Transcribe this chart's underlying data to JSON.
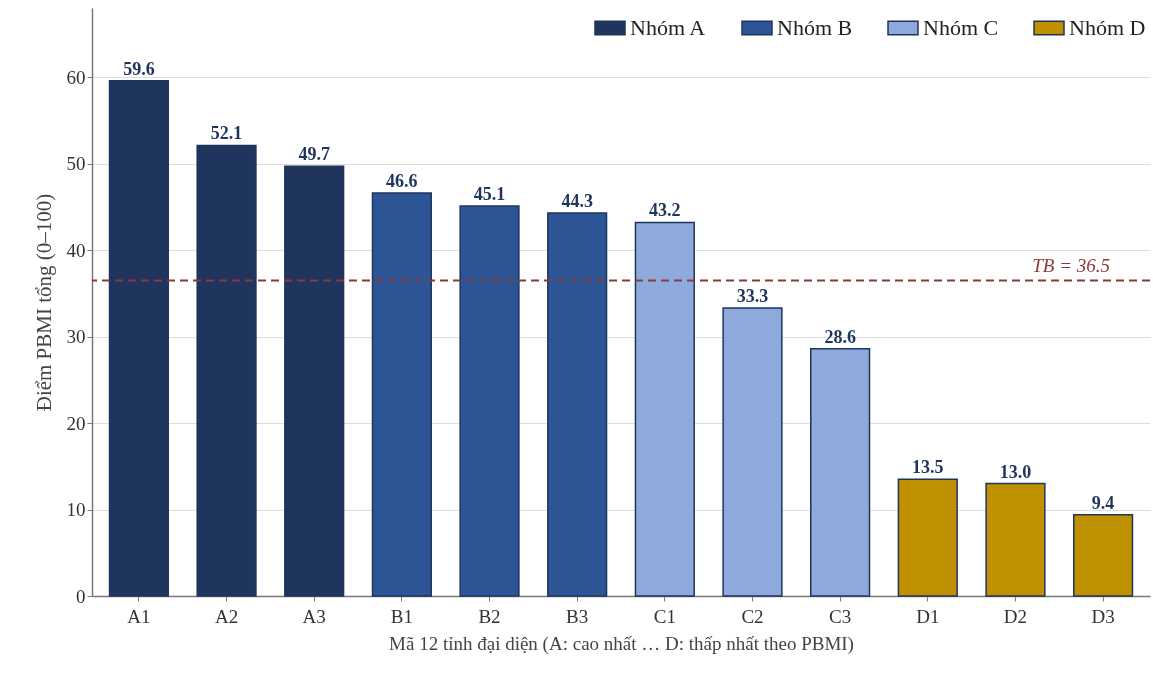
{
  "chart_data": {
    "type": "bar",
    "xlabel": "Mã 12 tỉnh đại diện (A: cao nhất … D: thấp nhất theo PBMI)",
    "ylabel": "Điểm PBMI tổng (0–100)",
    "categories": [
      "A1",
      "A2",
      "A3",
      "B1",
      "B2",
      "B3",
      "C1",
      "C2",
      "C3",
      "D1",
      "D2",
      "D3"
    ],
    "series": [
      {
        "name": "Nhóm A",
        "color": "#1f355e",
        "values": [
          59.6,
          52.1,
          49.7,
          null,
          null,
          null,
          null,
          null,
          null,
          null,
          null,
          null
        ],
        "value_labels": [
          "59.6",
          "52.1",
          "49.7",
          null,
          null,
          null,
          null,
          null,
          null,
          null,
          null,
          null
        ]
      },
      {
        "name": "Nhóm B",
        "color": "#2d5494",
        "values": [
          null,
          null,
          null,
          46.6,
          45.1,
          44.3,
          null,
          null,
          null,
          null,
          null,
          null
        ],
        "value_labels": [
          null,
          null,
          null,
          "46.6",
          "45.1",
          "44.3",
          null,
          null,
          null,
          null,
          null,
          null
        ]
      },
      {
        "name": "Nhóm C",
        "color": "#8eaadc",
        "values": [
          null,
          null,
          null,
          null,
          null,
          null,
          43.2,
          33.3,
          28.6,
          null,
          null,
          null
        ],
        "value_labels": [
          null,
          null,
          null,
          null,
          null,
          null,
          "43.2",
          "33.3",
          "28.6",
          null,
          null,
          null
        ]
      },
      {
        "name": "Nhóm D",
        "color": "#bf9000",
        "values": [
          null,
          null,
          null,
          null,
          null,
          null,
          null,
          null,
          null,
          13.5,
          13.0,
          9.4
        ],
        "value_labels": [
          null,
          null,
          null,
          null,
          null,
          null,
          null,
          null,
          null,
          "13.5",
          "13.0",
          "9.4"
        ]
      }
    ],
    "ylim": [
      0,
      68
    ],
    "yticks": [
      0,
      10,
      20,
      30,
      40,
      50,
      60
    ],
    "grid": "y",
    "legend": "top right",
    "ref_lines": [
      {
        "axis": "y",
        "value": 36.5,
        "label": "TB = 36.5",
        "color": "#8b3a3a",
        "line_style": "dashed"
      }
    ]
  }
}
